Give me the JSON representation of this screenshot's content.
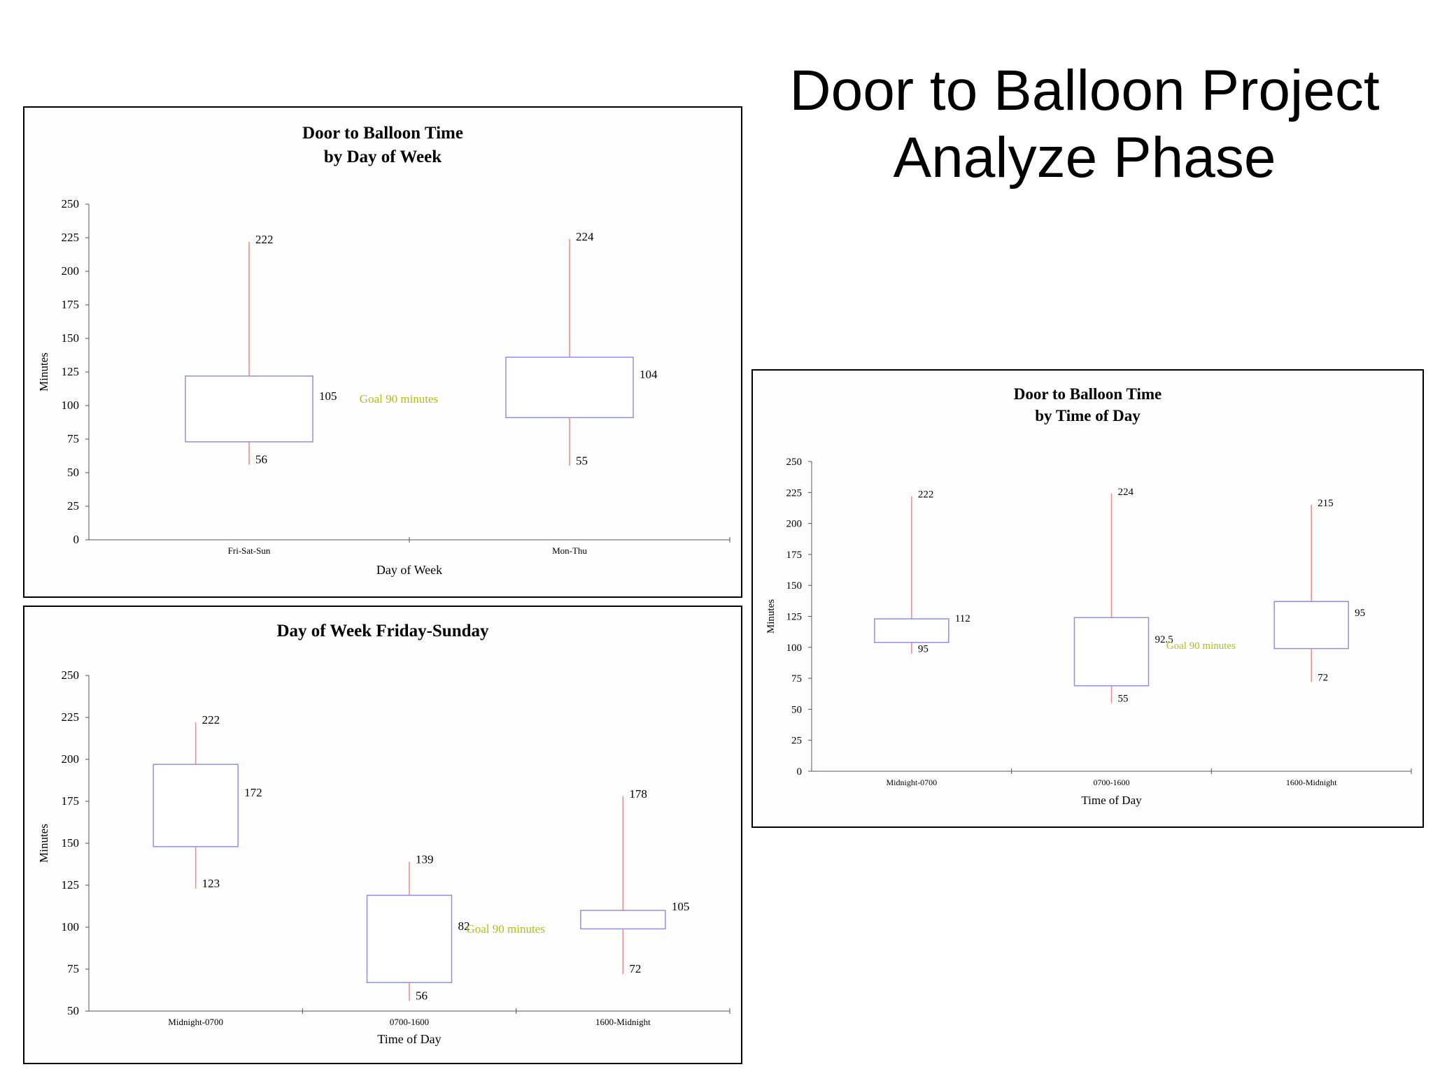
{
  "slide": {
    "title_line1": "Door to Balloon Project",
    "title_line2": "Analyze Phase"
  },
  "colors": {
    "box": "#8f8fe8",
    "whisker": "#ef8a8a",
    "goal": "#a8c414",
    "axis": "#555555",
    "text": "#000000"
  },
  "chart_data": [
    {
      "id": "day-of-week",
      "type": "boxplot",
      "title_line1": "Door to Balloon Time",
      "title_line2": "by Day of Week",
      "xlabel": "Day of Week",
      "ylabel": "Minutes",
      "ylim": [
        0,
        250
      ],
      "yticks": [
        0,
        25,
        50,
        75,
        100,
        125,
        150,
        175,
        200,
        225,
        250
      ],
      "goal_label": "Goal 90 minutes",
      "goal_after_category": 0,
      "categories": [
        {
          "name": "Fri-Sat-Sun",
          "min": 56,
          "q1": 73,
          "q3": 122,
          "max": 222,
          "min_label": "56",
          "median_label": "105",
          "max_label": "222"
        },
        {
          "name": "Mon-Thu",
          "min": 55,
          "q1": 91,
          "q3": 136,
          "max": 224,
          "min_label": "55",
          "median_label": "104",
          "max_label": "224"
        }
      ]
    },
    {
      "id": "fri-sun-time-of-day",
      "type": "boxplot",
      "title_line1": "Day of Week Friday-Sunday",
      "title_line2": "",
      "xlabel": "Time of Day",
      "ylabel": "Minutes",
      "ylim": [
        50,
        250
      ],
      "yticks": [
        50,
        75,
        100,
        125,
        150,
        175,
        200,
        225,
        250
      ],
      "goal_label": "Goal 90 minutes",
      "goal_after_category": 1,
      "categories": [
        {
          "name": "Midnight-0700",
          "min": 123,
          "q1": 148,
          "q3": 197,
          "max": 222,
          "min_label": "123",
          "median_label": "172",
          "max_label": "222"
        },
        {
          "name": "0700-1600",
          "min": 56,
          "q1": 67,
          "q3": 119,
          "max": 139,
          "min_label": "56",
          "median_label": "82",
          "max_label": "139"
        },
        {
          "name": "1600-Midnight",
          "min": 72,
          "q1": 99,
          "q3": 110,
          "max": 178,
          "min_label": "72",
          "median_label": "105",
          "max_label": "178"
        }
      ]
    },
    {
      "id": "time-of-day",
      "type": "boxplot",
      "title_line1": "Door to Balloon Time",
      "title_line2": "by Time of Day",
      "xlabel": "Time of Day",
      "ylabel": "Minutes",
      "ylim": [
        0,
        250
      ],
      "yticks": [
        0,
        25,
        50,
        75,
        100,
        125,
        150,
        175,
        200,
        225,
        250
      ],
      "goal_label": "Goal 90 minutes",
      "goal_after_category": 1,
      "categories": [
        {
          "name": "Midnight-0700",
          "min": 95,
          "q1": 104,
          "q3": 123,
          "max": 222,
          "min_label": "95",
          "median_label": "112",
          "max_label": "222"
        },
        {
          "name": "0700-1600",
          "min": 55,
          "q1": 69,
          "q3": 124,
          "max": 224,
          "min_label": "55",
          "median_label": "92.5",
          "max_label": "224"
        },
        {
          "name": "1600-Midnight",
          "min": 72,
          "q1": 99,
          "q3": 137,
          "max": 215,
          "min_label": "72",
          "median_label": "95",
          "max_label": "215"
        }
      ]
    }
  ]
}
